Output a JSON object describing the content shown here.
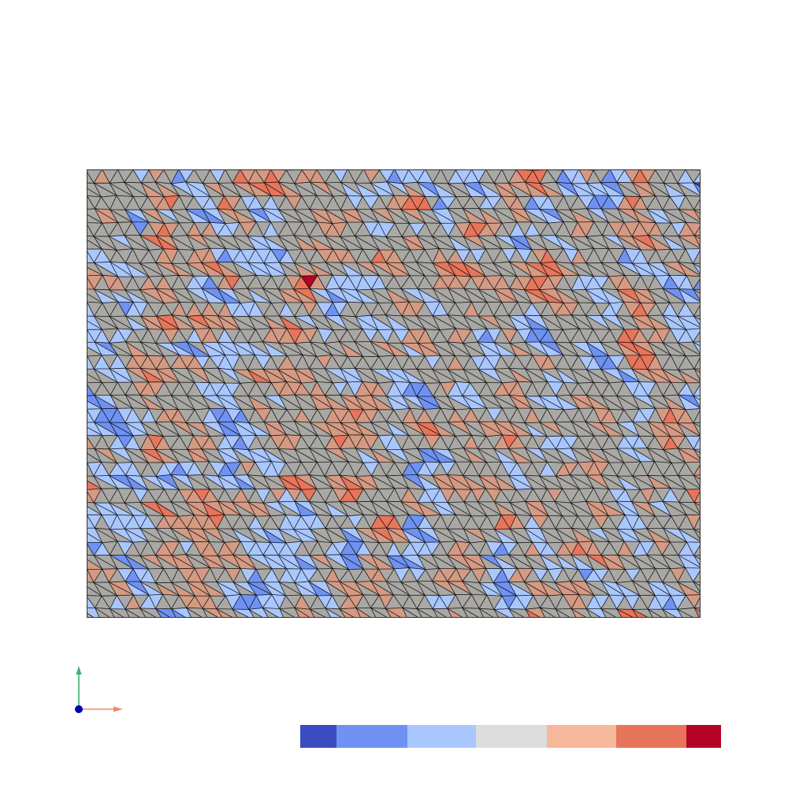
{
  "mesh": {
    "colormap": "coolwarm",
    "edge_color": "#000000",
    "cell_type": "triangle",
    "field_levels": [
      -3,
      -2,
      -1,
      0,
      1,
      2,
      3
    ]
  },
  "colorbar": {
    "segments": [
      {
        "color": "#3b4cc0",
        "weight": 0.087
      },
      {
        "color": "#6f92f2",
        "weight": 0.167
      },
      {
        "color": "#aac7fd",
        "weight": 0.163
      },
      {
        "color": "#dddcdc",
        "weight": 0.169
      },
      {
        "color": "#f7b89c",
        "weight": 0.164
      },
      {
        "color": "#e7755b",
        "weight": 0.168
      },
      {
        "color": "#b40426",
        "weight": 0.082
      }
    ]
  },
  "axes": {
    "x_color": "#f08a6c",
    "y_color": "#3cb371",
    "z_color": "#0000b3"
  }
}
